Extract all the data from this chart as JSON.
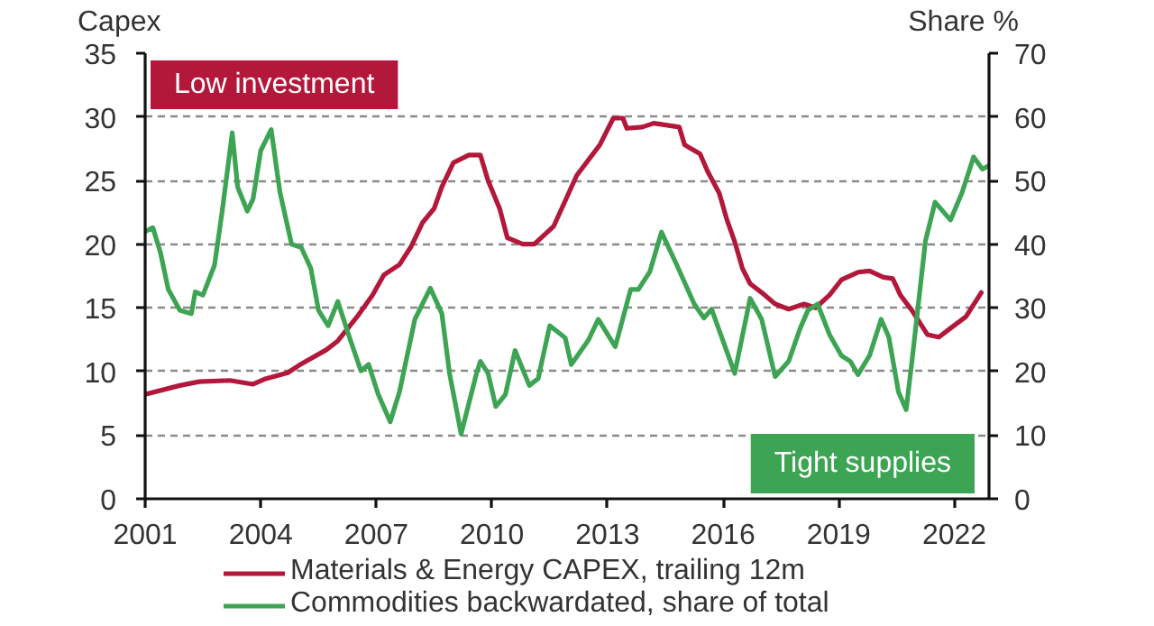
{
  "chart_data": {
    "type": "line",
    "ylabel": "Capex",
    "y2label": "Share %",
    "annotations": [
      "Low investment",
      "Tight supplies"
    ],
    "series": [
      {
        "name": "Materials & Energy CAPEX, trailing 12m",
        "color": "#b3173a",
        "x": [
          2001.0,
          2001.9,
          2002.4,
          2003.2,
          2003.8,
          2004.1,
          2004.7,
          2005.0,
          2005.7,
          2006.0,
          2006.5,
          2006.9,
          2007.2,
          2007.6,
          2007.9,
          2008.2,
          2008.5,
          2008.7,
          2009.0,
          2009.4,
          2009.7,
          2009.9,
          2010.2,
          2010.4,
          2010.8,
          2011.1,
          2011.6,
          2012.2,
          2012.8,
          2013.15,
          2013.4,
          2013.5,
          2013.9,
          2014.2,
          2014.86,
          2015.0,
          2015.4,
          2015.6,
          2015.9,
          2016.1,
          2016.3,
          2016.5,
          2016.7,
          2017.0,
          2017.35,
          2017.7,
          2018.1,
          2018.4,
          2018.76,
          2019.07,
          2019.5,
          2019.8,
          2020.16,
          2020.4,
          2020.6,
          2020.9,
          2021.3,
          2021.6,
          2021.9,
          2022.3,
          2022.7
        ],
        "values": [
          8.2,
          8.9,
          9.2,
          9.3,
          9.0,
          9.4,
          9.9,
          10.5,
          11.7,
          12.4,
          14.3,
          16.0,
          17.6,
          18.4,
          19.8,
          21.7,
          22.8,
          24.5,
          26.4,
          27.0,
          27.0,
          25.0,
          22.8,
          20.5,
          20.0,
          20.0,
          21.4,
          25.4,
          27.8,
          29.9,
          29.9,
          29.1,
          29.2,
          29.5,
          29.2,
          27.8,
          27.1,
          25.7,
          24.0,
          21.9,
          20.2,
          18.1,
          16.9,
          16.2,
          15.3,
          14.9,
          15.3,
          15.0,
          16.0,
          17.2,
          17.8,
          17.9,
          17.4,
          17.3,
          16.0,
          14.8,
          12.9,
          12.7,
          13.4,
          14.3,
          16.2
        ]
      },
      {
        "name": "Commodities backwardated, share of total",
        "color": "#3ca453",
        "axis": "y2",
        "x": [
          2001.0,
          2001.2,
          2001.4,
          2001.6,
          2001.9,
          2002.2,
          2002.3,
          2002.5,
          2002.8,
          2003.0,
          2003.26,
          2003.4,
          2003.65,
          2003.8,
          2004.0,
          2004.27,
          2004.5,
          2004.8,
          2005.05,
          2005.3,
          2005.5,
          2005.75,
          2006.0,
          2006.3,
          2006.6,
          2006.8,
          2007.05,
          2007.36,
          2007.6,
          2008.0,
          2008.4,
          2008.7,
          2008.9,
          2009.2,
          2009.6,
          2009.7,
          2009.9,
          2010.1,
          2010.35,
          2010.6,
          2010.97,
          2011.2,
          2011.5,
          2011.9,
          2012.06,
          2012.5,
          2012.76,
          2013.2,
          2013.6,
          2013.8,
          2014.1,
          2014.4,
          2014.8,
          2015.25,
          2015.5,
          2015.7,
          2016.3,
          2016.7,
          2017.0,
          2017.35,
          2017.7,
          2018.0,
          2018.2,
          2018.45,
          2018.76,
          2019.07,
          2019.3,
          2019.5,
          2019.8,
          2020.1,
          2020.3,
          2020.55,
          2020.75,
          2020.9,
          2021.25,
          2021.5,
          2021.9,
          2022.2,
          2022.5,
          2022.73,
          2022.88
        ],
        "values": [
          42.0,
          42.6,
          38.6,
          32.9,
          29.6,
          29.1,
          32.5,
          32.0,
          36.7,
          45.2,
          57.5,
          49.0,
          45.2,
          47.1,
          54.7,
          58.0,
          48.1,
          40.0,
          39.5,
          36.2,
          29.6,
          27.2,
          31.0,
          25.4,
          20.1,
          21.1,
          16.4,
          12.1,
          16.8,
          28.2,
          33.1,
          29.1,
          19.7,
          10.2,
          19.7,
          21.6,
          19.7,
          14.5,
          16.4,
          23.3,
          17.8,
          18.9,
          27.2,
          25.3,
          21.1,
          24.9,
          28.2,
          23.9,
          32.9,
          32.9,
          35.7,
          41.9,
          36.7,
          30.6,
          28.4,
          29.8,
          19.7,
          31.5,
          28.2,
          19.2,
          21.6,
          26.8,
          29.6,
          30.6,
          25.8,
          22.5,
          21.6,
          19.5,
          22.5,
          28.2,
          25.4,
          16.8,
          14.0,
          21.6,
          40.5,
          46.6,
          43.8,
          48.1,
          53.7,
          51.8,
          52.3
        ]
      }
    ],
    "xlim": [
      2001,
      2022.9
    ],
    "xticks": [
      2001,
      2004,
      2007,
      2010,
      2013,
      2016,
      2019,
      2022
    ],
    "ylim": [
      0,
      35
    ],
    "yticks": [
      0,
      5,
      10,
      15,
      20,
      25,
      30,
      35
    ],
    "y2lim": [
      0,
      70
    ],
    "y2ticks": [
      0,
      10,
      20,
      30,
      40,
      50,
      60,
      70
    ],
    "grid": "y",
    "legend": "bottom"
  }
}
